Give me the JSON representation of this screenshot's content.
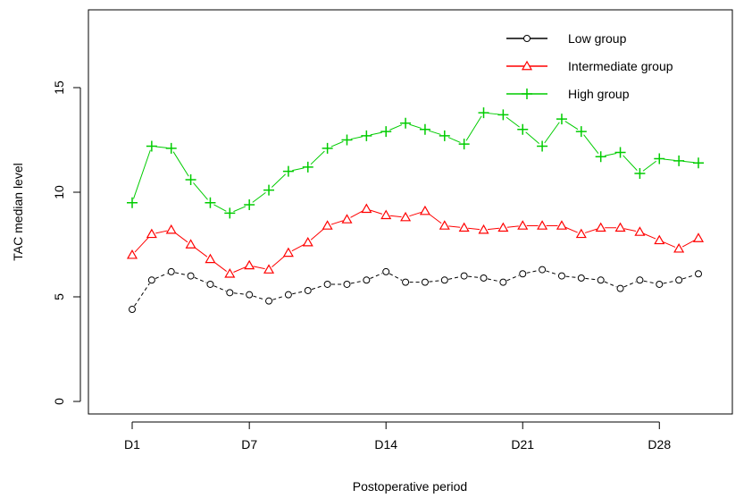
{
  "chart_data": {
    "type": "line",
    "title": "",
    "xlabel": "Postoperative period",
    "ylabel": "TAC median level",
    "x": [
      1,
      2,
      3,
      4,
      5,
      6,
      7,
      8,
      9,
      10,
      11,
      12,
      13,
      14,
      15,
      16,
      17,
      18,
      19,
      20,
      21,
      22,
      23,
      24,
      25,
      26,
      27,
      28,
      29,
      30
    ],
    "xlim": [
      0,
      31
    ],
    "ylim": [
      0,
      17.5
    ],
    "x_ticks": [
      {
        "value": 1,
        "label": "D1"
      },
      {
        "value": 7,
        "label": "D7"
      },
      {
        "value": 14,
        "label": "D14"
      },
      {
        "value": 21,
        "label": "D21"
      },
      {
        "value": 28,
        "label": "D28"
      }
    ],
    "y_ticks": [
      {
        "value": 0,
        "label": "0"
      },
      {
        "value": 5,
        "label": "5"
      },
      {
        "value": 10,
        "label": "10"
      },
      {
        "value": 15,
        "label": "15"
      }
    ],
    "grid": false,
    "legend_position": "top-right",
    "series": [
      {
        "name": "Low group",
        "color": "#000000",
        "marker": "circle",
        "line_style": "dashed",
        "values": [
          4.4,
          5.8,
          6.2,
          6.0,
          5.6,
          5.2,
          5.1,
          4.8,
          5.1,
          5.3,
          5.6,
          5.6,
          5.8,
          6.2,
          5.7,
          5.7,
          5.8,
          6.0,
          5.9,
          5.7,
          6.1,
          6.3,
          6.0,
          5.9,
          5.8,
          5.4,
          5.8,
          5.6,
          5.8,
          6.1
        ]
      },
      {
        "name": "Intermediate group",
        "color": "#ff0000",
        "marker": "triangle",
        "line_style": "solid",
        "values": [
          7.0,
          8.0,
          8.2,
          7.5,
          6.8,
          6.1,
          6.5,
          6.3,
          7.1,
          7.6,
          8.4,
          8.7,
          9.2,
          8.9,
          8.8,
          9.1,
          8.4,
          8.3,
          8.2,
          8.3,
          8.4,
          8.4,
          8.4,
          8.0,
          8.3,
          8.3,
          8.1,
          7.7,
          7.3,
          7.8
        ]
      },
      {
        "name": "High group",
        "color": "#00cc00",
        "marker": "plus",
        "line_style": "solid",
        "values": [
          9.5,
          12.2,
          12.1,
          10.6,
          9.5,
          9.0,
          9.4,
          10.1,
          11.0,
          11.2,
          12.1,
          12.5,
          12.7,
          12.9,
          13.3,
          13.0,
          12.7,
          12.3,
          13.8,
          13.7,
          13.0,
          12.2,
          13.5,
          12.9,
          11.7,
          11.9,
          10.9,
          11.6,
          11.5,
          11.4
        ]
      }
    ]
  }
}
